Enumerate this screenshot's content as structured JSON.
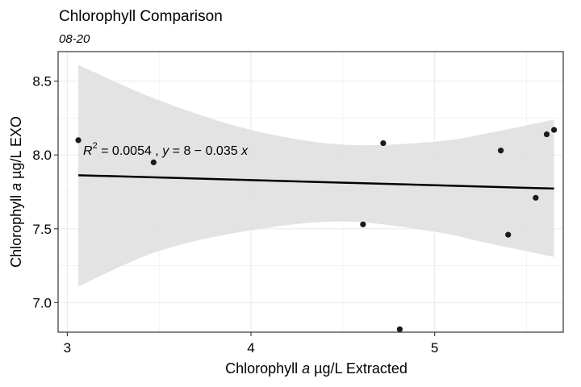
{
  "chart_data": {
    "type": "scatter",
    "title": "Chlorophyll Comparison",
    "subtitle": "08-20",
    "xlabel": "Chlorophyll a µg/L Extracted",
    "ylabel": "Chlorophyll a µg/L EXO",
    "xlim": [
      2.95,
      5.7
    ],
    "ylim": [
      6.8,
      8.7
    ],
    "x_ticks": [
      3,
      4,
      5
    ],
    "y_ticks": [
      7.0,
      7.5,
      8.0,
      8.5
    ],
    "x_tick_labels": [
      "3",
      "4",
      "5"
    ],
    "y_tick_labels": [
      "7.0",
      "7.5",
      "8.0",
      "8.5"
    ],
    "grid": true,
    "points": [
      {
        "x": 3.06,
        "y": 8.1
      },
      {
        "x": 3.47,
        "y": 7.95
      },
      {
        "x": 4.61,
        "y": 7.53
      },
      {
        "x": 4.72,
        "y": 8.08
      },
      {
        "x": 4.81,
        "y": 6.82
      },
      {
        "x": 5.36,
        "y": 8.03
      },
      {
        "x": 5.4,
        "y": 7.46
      },
      {
        "x": 5.55,
        "y": 7.71
      },
      {
        "x": 5.61,
        "y": 8.14
      },
      {
        "x": 5.65,
        "y": 8.17
      }
    ],
    "fit": {
      "intercept": 7.97,
      "slope": -0.035,
      "x_range": [
        3.06,
        5.65
      ]
    },
    "confidence_band": {
      "x": [
        3.06,
        3.5,
        4.0,
        4.5,
        5.0,
        5.3,
        5.65
      ],
      "upper": [
        8.61,
        8.37,
        8.17,
        8.07,
        8.09,
        8.15,
        8.24
      ],
      "lower": [
        7.11,
        7.35,
        7.49,
        7.55,
        7.48,
        7.4,
        7.31
      ]
    },
    "annotation": {
      "r2": "0.0054",
      "equation": "8 − 0.035"
    }
  }
}
